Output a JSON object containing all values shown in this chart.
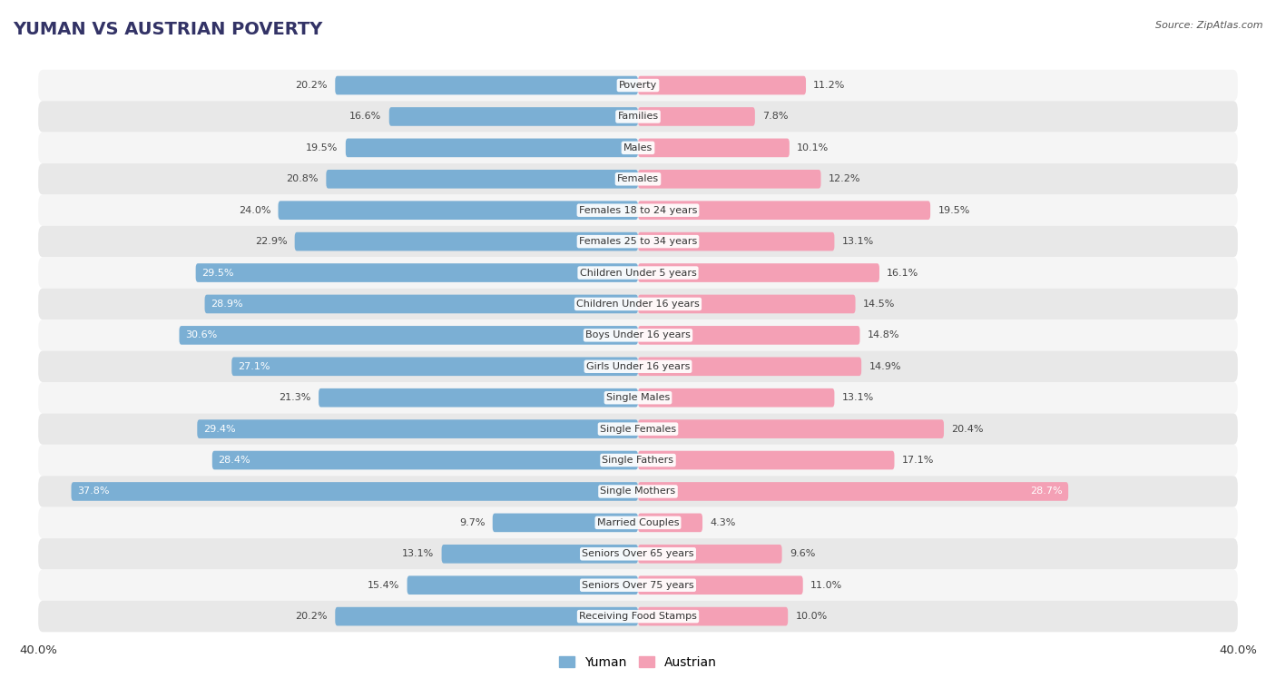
{
  "title": "YUMAN VS AUSTRIAN POVERTY",
  "source": "Source: ZipAtlas.com",
  "categories": [
    "Poverty",
    "Families",
    "Males",
    "Females",
    "Females 18 to 24 years",
    "Females 25 to 34 years",
    "Children Under 5 years",
    "Children Under 16 years",
    "Boys Under 16 years",
    "Girls Under 16 years",
    "Single Males",
    "Single Females",
    "Single Fathers",
    "Single Mothers",
    "Married Couples",
    "Seniors Over 65 years",
    "Seniors Over 75 years",
    "Receiving Food Stamps"
  ],
  "yuman_values": [
    20.2,
    16.6,
    19.5,
    20.8,
    24.0,
    22.9,
    29.5,
    28.9,
    30.6,
    27.1,
    21.3,
    29.4,
    28.4,
    37.8,
    9.7,
    13.1,
    15.4,
    20.2
  ],
  "austrian_values": [
    11.2,
    7.8,
    10.1,
    12.2,
    19.5,
    13.1,
    16.1,
    14.5,
    14.8,
    14.9,
    13.1,
    20.4,
    17.1,
    28.7,
    4.3,
    9.6,
    11.0,
    10.0
  ],
  "yuman_color": "#7bafd4",
  "austrian_color": "#f4a0b5",
  "yuman_label": "Yuman",
  "austrian_label": "Austrian",
  "axis_max": 40.0,
  "fig_bg": "#ffffff",
  "row_bg_light": "#f5f5f5",
  "row_bg_dark": "#e8e8e8",
  "title_fontsize": 14,
  "label_fontsize": 8,
  "value_fontsize": 8,
  "bar_height": 0.6,
  "legend_fontsize": 10,
  "title_color": "#333366"
}
